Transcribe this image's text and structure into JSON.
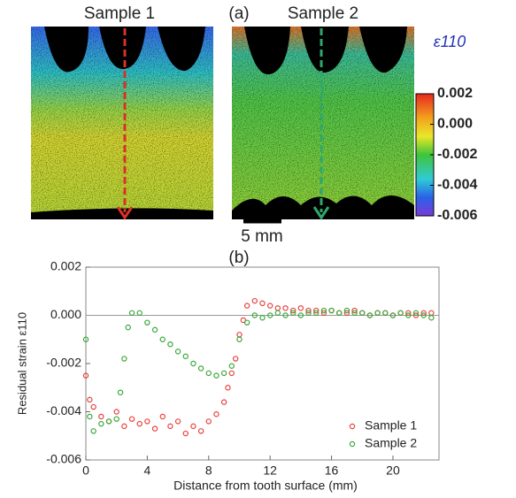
{
  "chart_data": [
    {
      "type": "image",
      "title": "(a)",
      "panels": [
        "Sample 1",
        "Sample 2"
      ],
      "colorbar_label": "ε110",
      "colorbar_lim": [
        -0.006,
        0.002
      ],
      "colorbar_ticks": [
        0.002,
        {
          "value": 0,
          "label": "0.000"
        },
        -0.002,
        -0.004,
        -0.006
      ],
      "scalebar": "5 mm"
    },
    {
      "type": "scatter",
      "title": "(b)",
      "xlabel": "Distance from tooth surface (mm)",
      "ylabel": "Residual strain ε110",
      "xlim": [
        0,
        23
      ],
      "ylim": [
        -0.006,
        0.002
      ],
      "xticks": [
        0,
        4,
        8,
        12,
        16,
        20
      ],
      "yticks": [
        0.002,
        {
          "value": 0,
          "label": "0.000"
        },
        -0.002,
        -0.004,
        -0.006
      ],
      "legend": "lower right",
      "series": [
        {
          "name": "Sample 1",
          "color": "#e8413c",
          "x": [
            0,
            0.25,
            0.5,
            1,
            1.5,
            2,
            2.5,
            3,
            3.5,
            4,
            4.5,
            5,
            5.5,
            6,
            6.5,
            7,
            7.5,
            8,
            8.5,
            9,
            9.25,
            9.5,
            9.75,
            10,
            10.25,
            10.5,
            11,
            11.5,
            12,
            12.5,
            13,
            13.5,
            14,
            14.5,
            15,
            15.5,
            16,
            16.5,
            17,
            17.5,
            18,
            18.5,
            19,
            19.5,
            20,
            20.5,
            21,
            21.5,
            22,
            22.5
          ],
          "values": [
            -0.0025,
            -0.0035,
            -0.0038,
            -0.0042,
            -0.0044,
            -0.004,
            -0.0046,
            -0.0043,
            -0.0045,
            -0.0044,
            -0.0047,
            -0.0042,
            -0.0046,
            -0.0044,
            -0.0049,
            -0.0046,
            -0.0048,
            -0.0044,
            -0.0041,
            -0.0036,
            -0.003,
            -0.0024,
            -0.0018,
            -0.0008,
            -0.0002,
            0.0004,
            0.0006,
            0.0005,
            0.0004,
            0.0003,
            0.0003,
            0.0002,
            0.0003,
            0.0002,
            0.0002,
            0.0001,
            0.0002,
            0.0001,
            0.0001,
            0.0002,
            0.0001,
            0,
            0.0001,
            0.0001,
            0,
            0.0001,
            0.0001,
            0,
            0.0001,
            0.0001
          ]
        },
        {
          "name": "Sample 2",
          "color": "#3aa83a",
          "x": [
            0,
            0.25,
            0.5,
            1,
            1.5,
            2,
            2.25,
            2.5,
            2.75,
            3,
            3.5,
            4,
            4.5,
            5,
            5.5,
            6,
            6.5,
            7,
            7.5,
            8,
            8.5,
            9,
            9.5,
            10,
            10.5,
            11,
            11.5,
            12,
            12.5,
            13,
            13.5,
            14,
            14.5,
            15,
            15.5,
            16,
            16.5,
            17,
            17.5,
            18,
            18.5,
            19,
            19.5,
            20,
            20.5,
            21,
            21.5,
            22,
            22.5
          ],
          "values": [
            -0.001,
            -0.0042,
            -0.0048,
            -0.0045,
            -0.0044,
            -0.0043,
            -0.0032,
            -0.0018,
            -0.0005,
            0.0001,
            0.0001,
            -0.0003,
            -0.0006,
            -0.001,
            -0.0012,
            -0.0015,
            -0.0017,
            -0.002,
            -0.0022,
            -0.0024,
            -0.0025,
            -0.0024,
            -0.0021,
            -0.001,
            -0.0003,
            0,
            -0.0001,
            0,
            0.0001,
            0,
            0.0001,
            0,
            0.0001,
            0.0001,
            0.0002,
            0.0002,
            0.0001,
            0.0002,
            0.0001,
            0.0001,
            0,
            0.0001,
            0.0001,
            0,
            0.0001,
            0,
            0.0001,
            0,
            -0.0001
          ]
        }
      ]
    }
  ]
}
